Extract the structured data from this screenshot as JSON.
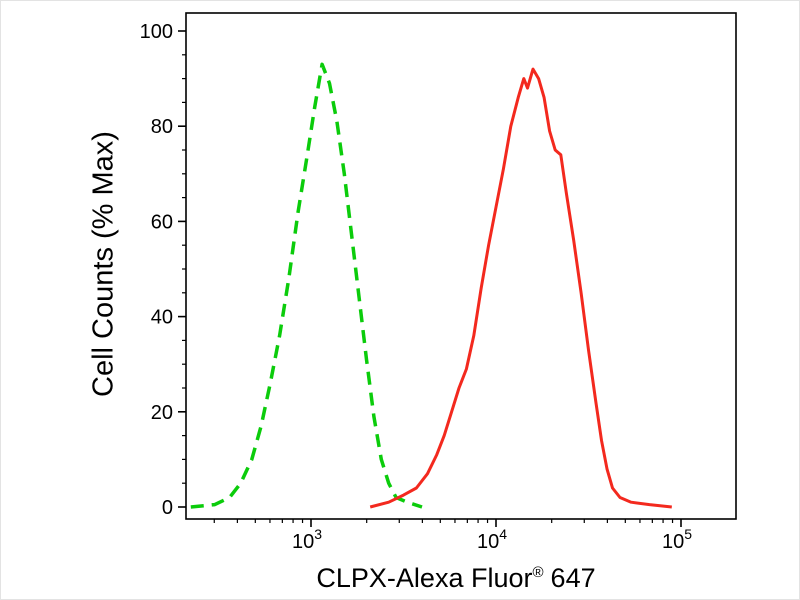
{
  "figure": {
    "background_color": "#ffffff",
    "ylabel": "Cell Counts (% Max)",
    "xlabel_base": "CLPX-Alexa Fluor",
    "xlabel_sup": "®",
    "xlabel_suffix": "647"
  },
  "chart_data": {
    "type": "line",
    "subtype": "flow-cytometry-histogram",
    "title": "",
    "xlabel": "CLPX-Alexa Fluor® 647",
    "ylabel": "Cell Counts (% Max)",
    "x_scale": "log10",
    "x_axis_range_log10": [
      2.32,
      5.28
    ],
    "ylim": [
      0,
      100
    ],
    "y_ticks": [
      0,
      20,
      40,
      60,
      80,
      100
    ],
    "y_minor_tick_step": 5,
    "x_tick_labels": [
      {
        "base": "10",
        "exp": "3",
        "log10": 3
      },
      {
        "base": "10",
        "exp": "4",
        "log10": 4
      },
      {
        "base": "10",
        "exp": "5",
        "log10": 5
      }
    ],
    "grid": false,
    "legend": "none",
    "frame": "box",
    "series": [
      {
        "name": "green_dashed",
        "color": "#0bcc0b",
        "style": "dashed",
        "stroke_width": 3.5,
        "points": [
          [
            2.35,
            0
          ],
          [
            2.48,
            0.5
          ],
          [
            2.56,
            2
          ],
          [
            2.62,
            5
          ],
          [
            2.68,
            10
          ],
          [
            2.73,
            17
          ],
          [
            2.78,
            26
          ],
          [
            2.83,
            36
          ],
          [
            2.88,
            48
          ],
          [
            2.93,
            62
          ],
          [
            2.98,
            74
          ],
          [
            3.02,
            84
          ],
          [
            3.06,
            93
          ],
          [
            3.1,
            89
          ],
          [
            3.14,
            81
          ],
          [
            3.18,
            70
          ],
          [
            3.22,
            57
          ],
          [
            3.26,
            44
          ],
          [
            3.3,
            31
          ],
          [
            3.34,
            19
          ],
          [
            3.38,
            10
          ],
          [
            3.42,
            5
          ],
          [
            3.46,
            2
          ],
          [
            3.52,
            1
          ],
          [
            3.6,
            0
          ]
        ]
      },
      {
        "name": "red_solid",
        "color": "#f3291e",
        "style": "solid",
        "stroke_width": 3,
        "points": [
          [
            3.32,
            0
          ],
          [
            3.42,
            1
          ],
          [
            3.5,
            2.5
          ],
          [
            3.57,
            4
          ],
          [
            3.63,
            7
          ],
          [
            3.68,
            11
          ],
          [
            3.72,
            15
          ],
          [
            3.76,
            20
          ],
          [
            3.8,
            25
          ],
          [
            3.84,
            29
          ],
          [
            3.88,
            36
          ],
          [
            3.92,
            46
          ],
          [
            3.96,
            55
          ],
          [
            4.0,
            63
          ],
          [
            4.04,
            71
          ],
          [
            4.08,
            80
          ],
          [
            4.12,
            86
          ],
          [
            4.15,
            90
          ],
          [
            4.17,
            88
          ],
          [
            4.2,
            92
          ],
          [
            4.23,
            90
          ],
          [
            4.26,
            86
          ],
          [
            4.29,
            79
          ],
          [
            4.32,
            75
          ],
          [
            4.35,
            74
          ],
          [
            4.38,
            66
          ],
          [
            4.42,
            56
          ],
          [
            4.46,
            45
          ],
          [
            4.5,
            33
          ],
          [
            4.54,
            22
          ],
          [
            4.57,
            14
          ],
          [
            4.6,
            8
          ],
          [
            4.63,
            4
          ],
          [
            4.67,
            2
          ],
          [
            4.73,
            1
          ],
          [
            4.83,
            0.5
          ],
          [
            4.95,
            0
          ]
        ]
      }
    ]
  }
}
